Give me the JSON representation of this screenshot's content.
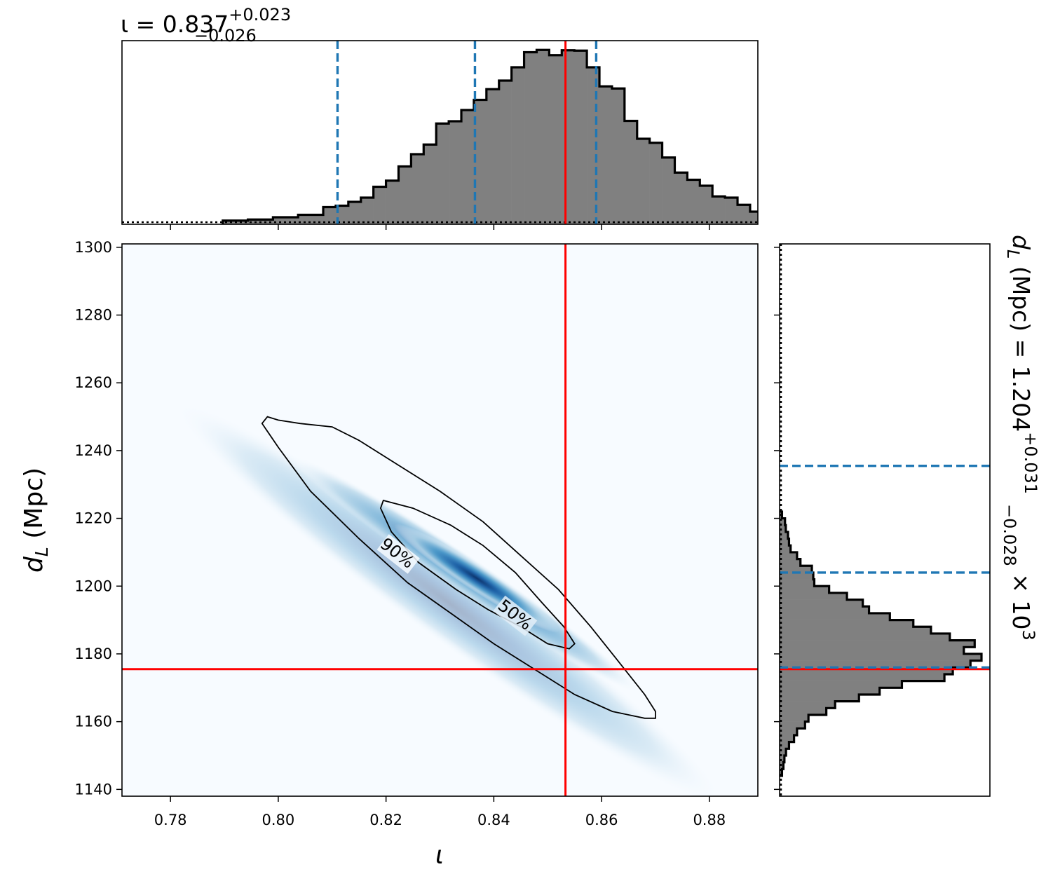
{
  "chart_data": {
    "type": "corner",
    "colors": {
      "truth": "#ff0000",
      "quantile": "#1f77b4",
      "hist_fill": "#808080",
      "hist_edge": "#000000",
      "density_low": "#f7fbff",
      "density_high": "#08306b"
    },
    "top_hist": {
      "title": "ι = 0.837",
      "title_sup": "+0.023",
      "title_sub": "−0.026",
      "xlim": [
        0.771,
        0.889
      ],
      "quantiles": [
        0.811,
        0.8365,
        0.859
      ],
      "truth": 0.8533,
      "bin_width": 0.00233,
      "bin_start": 0.7897,
      "counts": [
        0.9,
        0.9,
        1.5,
        1.5,
        2.8,
        2.8,
        4.2,
        4.2,
        8.6,
        9.4,
        11.6,
        14.0,
        20.2,
        23.7,
        31.8,
        38.8,
        44.3,
        56.3,
        57.6,
        64.0,
        69.8,
        75.9,
        80.8,
        88.4,
        97.0,
        98.3,
        95.3,
        98.1,
        97.9,
        88.4,
        77.5,
        76.3,
        57.8,
        47.6,
        45.3,
        36.9,
        28.3,
        24.2,
        20.8,
        14.7,
        14.0,
        9.9,
        6.0,
        3.9,
        3.5,
        1.9,
        1.3
      ]
    },
    "joint": {
      "xlabel": "ι",
      "ylabel": "d",
      "ylabel_sub": "L",
      "ylabel_unit": " (Mpc)",
      "xlim": [
        0.771,
        0.889
      ],
      "ylim": [
        1138,
        1301
      ],
      "xticks": [
        "0.78",
        "0.80",
        "0.82",
        "0.84",
        "0.86",
        "0.88"
      ],
      "xtick_values": [
        0.78,
        0.8,
        0.82,
        0.84,
        0.86,
        0.88
      ],
      "yticks": [
        "1140",
        "1160",
        "1180",
        "1200",
        "1220",
        "1240",
        "1260",
        "1280",
        "1300"
      ],
      "ytick_values": [
        1140,
        1160,
        1180,
        1200,
        1220,
        1240,
        1260,
        1280,
        1300
      ],
      "truth_x": 0.8533,
      "truth_y": 1175.5,
      "contour_labels": [
        "90%",
        "50%"
      ],
      "contour_90": [
        [
          0.798,
          1250
        ],
        [
          0.8,
          1249
        ],
        [
          0.804,
          1248
        ],
        [
          0.81,
          1247
        ],
        [
          0.815,
          1243
        ],
        [
          0.822,
          1236
        ],
        [
          0.83,
          1228
        ],
        [
          0.838,
          1219
        ],
        [
          0.845,
          1209
        ],
        [
          0.852,
          1199
        ],
        [
          0.858,
          1188
        ],
        [
          0.863,
          1178
        ],
        [
          0.868,
          1168
        ],
        [
          0.87,
          1163
        ],
        [
          0.87,
          1161
        ],
        [
          0.868,
          1161
        ],
        [
          0.862,
          1163
        ],
        [
          0.855,
          1168
        ],
        [
          0.848,
          1175
        ],
        [
          0.84,
          1183
        ],
        [
          0.832,
          1192
        ],
        [
          0.824,
          1201
        ],
        [
          0.815,
          1214
        ],
        [
          0.806,
          1228
        ],
        [
          0.8,
          1241
        ],
        [
          0.797,
          1248
        ],
        [
          0.798,
          1250
        ]
      ],
      "contour_50": [
        [
          0.8195,
          1225.3
        ],
        [
          0.825,
          1223
        ],
        [
          0.832,
          1218
        ],
        [
          0.838,
          1212
        ],
        [
          0.844,
          1204
        ],
        [
          0.849,
          1195
        ],
        [
          0.853,
          1188
        ],
        [
          0.855,
          1183
        ],
        [
          0.854,
          1181.5
        ],
        [
          0.85,
          1183
        ],
        [
          0.845,
          1188
        ],
        [
          0.839,
          1193
        ],
        [
          0.833,
          1199
        ],
        [
          0.826,
          1207
        ],
        [
          0.821,
          1216
        ],
        [
          0.819,
          1223
        ],
        [
          0.8195,
          1225.3
        ]
      ]
    },
    "right_hist": {
      "title": "d",
      "title_sub_L": "L",
      "title_unit": " (Mpc) = 1.204",
      "title_sup": "+0.031",
      "title_sub": "−0.028",
      "title_tail": " × 10",
      "title_exp": "3",
      "ylim": [
        1138,
        1301
      ],
      "quantiles": [
        1176,
        1204,
        1235.5
      ],
      "truth": 1175.5,
      "bin_height": 2,
      "bin_start": 1144,
      "counts": [
        0.5,
        1.2,
        1.7,
        2.5,
        4.0,
        6.5,
        8.0,
        12.0,
        13.7,
        22.6,
        27.0,
        38.9,
        49.2,
        60.3,
        81.5,
        85.7,
        94.5,
        100.0,
        91.2,
        96.6,
        84.2,
        74.8,
        66.0,
        54.3,
        43.9,
        40.8,
        32.9,
        24.0,
        16.6,
        16.1,
        15.4,
        9.7,
        8.0,
        4.8,
        4.0,
        3.5,
        2.4,
        2.0,
        0.5
      ]
    }
  }
}
